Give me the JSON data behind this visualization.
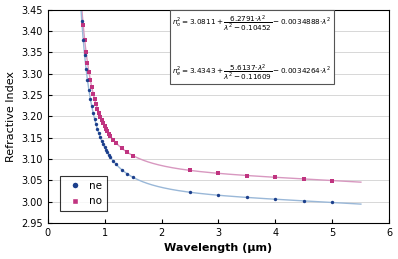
{
  "xlabel": "Wavelength (μm)",
  "ylabel": "Refractive Index",
  "xlim": [
    0,
    6
  ],
  "ylim": [
    2.95,
    3.45
  ],
  "yticks": [
    2.95,
    3.0,
    3.05,
    3.1,
    3.15,
    3.2,
    3.25,
    3.3,
    3.35,
    3.4,
    3.45
  ],
  "xticks": [
    0,
    1,
    2,
    3,
    4,
    5,
    6
  ],
  "ne_color": "#1c3f8c",
  "no_color": "#c03480",
  "ne_line_color": "#9ab8d8",
  "no_line_color": "#d898c0",
  "sellmeier_no": [
    3.0811,
    6.2791,
    0.10452,
    0.0034888
  ],
  "sellmeier_ne": [
    3.4343,
    5.6137,
    0.11609,
    0.0034264
  ],
  "data_points_ne": [
    0.55,
    0.575,
    0.6,
    0.625,
    0.65,
    0.675,
    0.7,
    0.725,
    0.75,
    0.775,
    0.8,
    0.825,
    0.85,
    0.875,
    0.9,
    0.925,
    0.95,
    0.975,
    1.0,
    1.025,
    1.05,
    1.075,
    1.1,
    1.15,
    1.2,
    1.3,
    1.4,
    1.5,
    2.5,
    3.0,
    3.5,
    4.0,
    4.5,
    5.0
  ],
  "data_points_no": [
    0.55,
    0.575,
    0.6,
    0.625,
    0.65,
    0.675,
    0.7,
    0.725,
    0.75,
    0.775,
    0.8,
    0.825,
    0.85,
    0.875,
    0.9,
    0.925,
    0.95,
    0.975,
    1.0,
    1.025,
    1.05,
    1.075,
    1.1,
    1.15,
    1.2,
    1.3,
    1.4,
    1.5,
    2.5,
    3.0,
    3.5,
    4.0,
    4.5,
    5.0
  ],
  "legend_ne": "ne",
  "legend_no": "no",
  "background_color": "#ffffff",
  "grid_color": "#c8c8c8",
  "annot_line1a": "n",
  "annot_line1b": "2",
  "annot_text1": "= 3.0811+  6.2791*λ²  −0.0034888* λ²",
  "annot_denom1": "λ² −0.10452",
  "annot_text2": "= 3.4343+  5.6137*λ²  −0.0034264* λ²",
  "annot_denom2": "λ² −0.11609"
}
